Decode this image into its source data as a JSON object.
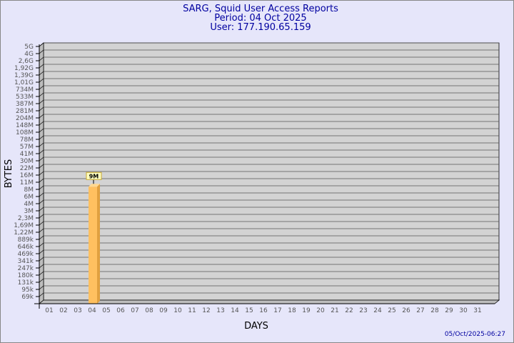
{
  "chart_data": {
    "type": "bar",
    "title": [
      "SARG, Squid User Access Reports",
      "Period: 04 Oct 2025",
      "User: 177.190.65.159"
    ],
    "xlabel": "DAYS",
    "ylabel": "BYTES",
    "y_scale": "log",
    "y_ticks": [
      "5G",
      "4G",
      "2,6G",
      "1,92G",
      "1,39G",
      "1,01G",
      "734M",
      "533M",
      "387M",
      "281M",
      "204M",
      "148M",
      "108M",
      "78M",
      "57M",
      "41M",
      "30M",
      "22M",
      "16M",
      "11M",
      "8M",
      "6M",
      "4M",
      "3M",
      "2,3M",
      "1,69M",
      "1,22M",
      "889k",
      "646k",
      "469k",
      "341k",
      "247k",
      "180k",
      "131k",
      "95k",
      "69k"
    ],
    "categories": [
      "01",
      "02",
      "03",
      "04",
      "05",
      "06",
      "07",
      "08",
      "09",
      "10",
      "11",
      "12",
      "13",
      "14",
      "15",
      "16",
      "17",
      "18",
      "19",
      "20",
      "21",
      "22",
      "23",
      "24",
      "25",
      "26",
      "27",
      "28",
      "29",
      "30",
      "31"
    ],
    "bars": [
      {
        "day": "04",
        "value": 9000000,
        "label": "9M"
      }
    ],
    "grid": true,
    "colors": {
      "bar": "#ffc060",
      "bar_side": "#e0a040",
      "plot": "#d3d3d3",
      "background": "#e6e6fa",
      "title": "#0000a0"
    }
  },
  "footer": {
    "timestamp": "05/Oct/2025-06:27"
  }
}
